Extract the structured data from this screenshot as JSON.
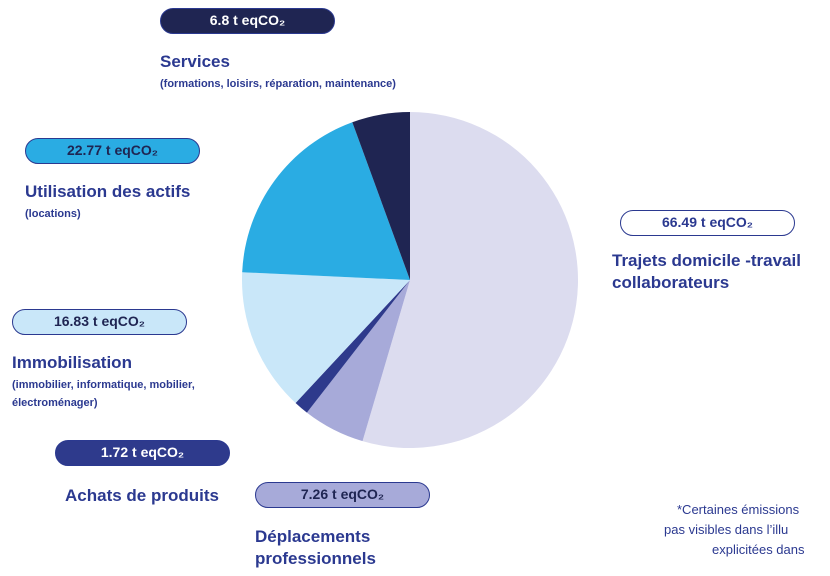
{
  "chart_data": {
    "type": "pie",
    "categories": [
      "Trajets domicile -travail collaborateurs",
      "Déplacements professionnels",
      "Achats de produits",
      "Immobilisation",
      "Utilisation des actifs",
      "Services"
    ],
    "descriptions": [
      null,
      null,
      null,
      "(immobilier, informatique, mobilier, électroménager)",
      "(locations)",
      "(formations, loisirs, réparation, maintenance)"
    ],
    "values": [
      66.49,
      7.26,
      1.72,
      16.83,
      22.77,
      6.8
    ],
    "value_labels": [
      "66.49 t eqCO₂",
      "7.26 t eqCO₂",
      "1.72 t eqCO₂",
      "16.83 t eqCO₂",
      "22.77 t eqCO₂",
      "6.8 t eqCO₂"
    ],
    "colors": [
      "#dcdcef",
      "#a7aad9",
      "#2e3a8c",
      "#c9e7f9",
      "#2aace3",
      "#1f2552"
    ],
    "annotations": [
      "*Certaines émissions",
      "pas visibles dans l’illu",
      "explicitées dans"
    ]
  }
}
